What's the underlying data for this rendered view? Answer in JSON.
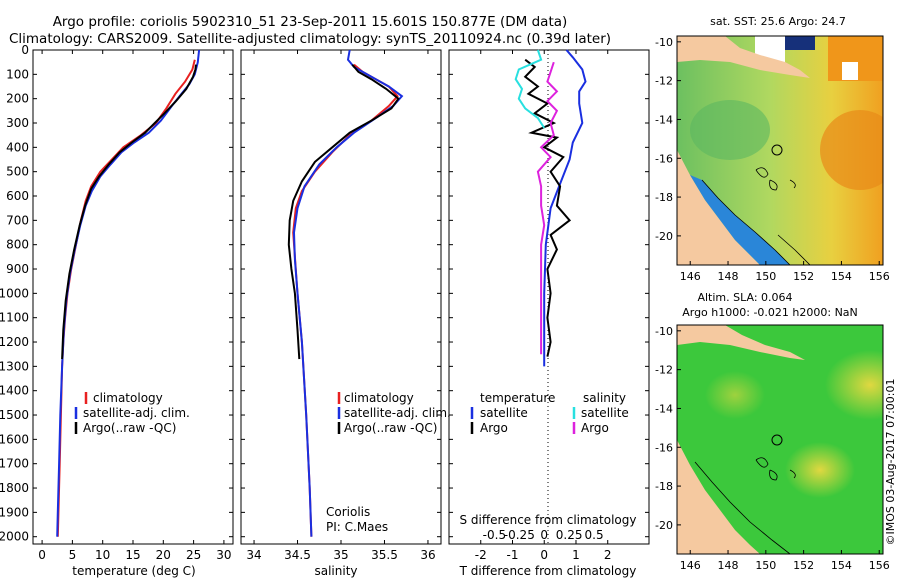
{
  "header": {
    "line1": "Argo profile: coriolis 5902310_51 23-Sep-2011 15.601S 150.877E (DM data)",
    "line2": "Climatology: CARS2009. Satellite-adjusted climatology: synTS_20110924.nc (0.39d later)"
  },
  "side_label": "©IMOS 03-Aug-2017 07:00:01",
  "colors": {
    "climatology": "#e82020",
    "satellite": "#1a2fe0",
    "argo": "#000000",
    "salinity_satellite": "#28e0e0",
    "salinity_argo": "#dd22dd",
    "land": "#f5c9a0"
  },
  "depth_axis": {
    "ticks": [
      0,
      100,
      200,
      300,
      400,
      500,
      600,
      700,
      800,
      900,
      1000,
      1100,
      1200,
      1300,
      1400,
      1500,
      1600,
      1700,
      1800,
      1900,
      2000
    ],
    "range": [
      0,
      2030
    ]
  },
  "chart_data": [
    {
      "type": "line",
      "name": "temperature-profile",
      "xlabel": "temperature (deg C)",
      "xticks": [
        0,
        5,
        10,
        15,
        20,
        25,
        30
      ],
      "xlim": [
        -1.5,
        31.5
      ],
      "ylim": [
        0,
        2030
      ],
      "legend": [
        "climatology",
        "satellite-adj. clim.",
        "Argo(..raw -QC)"
      ],
      "series": [
        {
          "name": "climatology",
          "color": "#e82020",
          "points": [
            [
              25.2,
              40
            ],
            [
              24.8,
              80
            ],
            [
              23.6,
              130
            ],
            [
              22.0,
              180
            ],
            [
              20.5,
              240
            ],
            [
              18.8,
              300
            ],
            [
              16.3,
              350
            ],
            [
              13.4,
              400
            ],
            [
              11.5,
              450
            ],
            [
              9.6,
              500
            ],
            [
              8.1,
              560
            ],
            [
              7.2,
              620
            ],
            [
              6.4,
              700
            ],
            [
              5.6,
              800
            ],
            [
              4.8,
              900
            ],
            [
              4.2,
              1000
            ],
            [
              3.8,
              1100
            ],
            [
              3.5,
              1200
            ],
            [
              3.3,
              1300
            ],
            [
              3.1,
              1500
            ],
            [
              2.9,
              1700
            ],
            [
              2.6,
              2000
            ]
          ]
        },
        {
          "name": "satellite",
          "color": "#1a2fe0",
          "points": [
            [
              25.9,
              0
            ],
            [
              25.7,
              50
            ],
            [
              25.2,
              100
            ],
            [
              24.3,
              140
            ],
            [
              23.0,
              180
            ],
            [
              21.4,
              230
            ],
            [
              19.6,
              290
            ],
            [
              17.6,
              340
            ],
            [
              15.2,
              380
            ],
            [
              13.1,
              420
            ],
            [
              11.3,
              470
            ],
            [
              9.6,
              520
            ],
            [
              8.2,
              580
            ],
            [
              7.2,
              640
            ],
            [
              6.3,
              720
            ],
            [
              5.4,
              820
            ],
            [
              4.6,
              920
            ],
            [
              4.0,
              1030
            ],
            [
              3.6,
              1150
            ],
            [
              3.3,
              1300
            ],
            [
              3.0,
              1500
            ],
            [
              2.8,
              1700
            ],
            [
              2.6,
              1900
            ],
            [
              2.5,
              2000
            ]
          ]
        },
        {
          "name": "argo",
          "color": "#000000",
          "points": [
            [
              25.4,
              60
            ],
            [
              25.3,
              80
            ],
            [
              24.9,
              110
            ],
            [
              23.8,
              160
            ],
            [
              22.1,
              210
            ],
            [
              20.2,
              260
            ],
            [
              18.6,
              300
            ],
            [
              17.0,
              340
            ],
            [
              14.8,
              380
            ],
            [
              12.8,
              420
            ],
            [
              11.0,
              470
            ],
            [
              9.4,
              520
            ],
            [
              8.1,
              570
            ],
            [
              7.1,
              640
            ],
            [
              6.2,
              720
            ],
            [
              5.3,
              820
            ],
            [
              4.5,
              920
            ],
            [
              3.9,
              1030
            ],
            [
              3.5,
              1150
            ],
            [
              3.3,
              1270
            ]
          ]
        }
      ]
    },
    {
      "type": "line",
      "name": "salinity-profile",
      "xlabel": "salinity",
      "xticks": [
        34,
        34.5,
        35,
        35.5,
        36
      ],
      "xlim": [
        33.85,
        36.15
      ],
      "ylim": [
        0,
        2030
      ],
      "legend": [
        "climatology",
        "satellite-adj. clim.",
        "Argo(..raw -QC)"
      ],
      "annotation": [
        "Coriolis",
        "PI: C.Maes"
      ],
      "series": [
        {
          "name": "climatology",
          "color": "#e82020",
          "points": [
            [
              35.15,
              60
            ],
            [
              35.25,
              90
            ],
            [
              35.4,
              120
            ],
            [
              35.55,
              150
            ],
            [
              35.65,
              190
            ],
            [
              35.55,
              230
            ],
            [
              35.35,
              290
            ],
            [
              35.1,
              350
            ],
            [
              34.9,
              420
            ],
            [
              34.7,
              500
            ],
            [
              34.55,
              580
            ],
            [
              34.48,
              650
            ],
            [
              34.45,
              750
            ],
            [
              34.47,
              850
            ],
            [
              34.5,
              1000
            ],
            [
              34.55,
              1200
            ],
            [
              34.6,
              1500
            ],
            [
              34.64,
              1800
            ],
            [
              34.66,
              2000
            ]
          ]
        },
        {
          "name": "satellite",
          "color": "#1a2fe0",
          "points": [
            [
              35.1,
              0
            ],
            [
              35.08,
              40
            ],
            [
              35.15,
              70
            ],
            [
              35.35,
              110
            ],
            [
              35.55,
              150
            ],
            [
              35.7,
              190
            ],
            [
              35.6,
              230
            ],
            [
              35.4,
              280
            ],
            [
              35.15,
              340
            ],
            [
              34.95,
              400
            ],
            [
              34.75,
              470
            ],
            [
              34.58,
              560
            ],
            [
              34.5,
              650
            ],
            [
              34.46,
              750
            ],
            [
              34.47,
              860
            ],
            [
              34.5,
              1000
            ],
            [
              34.55,
              1200
            ],
            [
              34.6,
              1500
            ],
            [
              34.64,
              1800
            ],
            [
              34.66,
              2000
            ]
          ]
        },
        {
          "name": "argo",
          "color": "#000000",
          "points": [
            [
              35.13,
              60
            ],
            [
              35.2,
              90
            ],
            [
              35.35,
              120
            ],
            [
              35.52,
              160
            ],
            [
              35.66,
              200
            ],
            [
              35.58,
              240
            ],
            [
              35.35,
              290
            ],
            [
              35.1,
              340
            ],
            [
              34.9,
              400
            ],
            [
              34.7,
              460
            ],
            [
              34.55,
              540
            ],
            [
              34.45,
              620
            ],
            [
              34.41,
              700
            ],
            [
              34.4,
              800
            ],
            [
              34.43,
              900
            ],
            [
              34.47,
              1000
            ],
            [
              34.5,
              1150
            ],
            [
              34.52,
              1270
            ]
          ]
        }
      ]
    },
    {
      "type": "line",
      "name": "difference-profile",
      "xlabel_top": "S difference from climatology",
      "xlabel": "T difference from climatology",
      "xticks_T": [
        -2,
        -1,
        0,
        1,
        2
      ],
      "xticks_S_labels": [
        "-0.5",
        "-0.25",
        "0",
        "0.25",
        "0.5"
      ],
      "xticks_S_values": [
        -0.5,
        -0.25,
        0,
        0.25,
        0.5
      ],
      "xlim_T": [
        -3,
        3.3
      ],
      "ylim": [
        0,
        2030
      ],
      "legend_headers": [
        "temperature",
        "salinity"
      ],
      "legend_left": [
        "satellite",
        "Argo"
      ],
      "legend_right": [
        "satellite",
        "Argo"
      ],
      "series": [
        {
          "name": "T satellite",
          "color": "#1a2fe0",
          "points": [
            [
              0.7,
              0
            ],
            [
              0.9,
              30
            ],
            [
              1.2,
              80
            ],
            [
              1.3,
              130
            ],
            [
              1.1,
              170
            ],
            [
              1.1,
              220
            ],
            [
              1.2,
              300
            ],
            [
              0.9,
              380
            ],
            [
              0.8,
              450
            ],
            [
              0.5,
              550
            ],
            [
              0.2,
              650
            ],
            [
              0.05,
              800
            ],
            [
              0.0,
              1000
            ],
            [
              0.0,
              1300
            ]
          ]
        },
        {
          "name": "T argo",
          "color": "#000000",
          "points": [
            [
              -0.6,
              40
            ],
            [
              -0.3,
              70
            ],
            [
              -0.6,
              110
            ],
            [
              -0.2,
              150
            ],
            [
              -0.5,
              180
            ],
            [
              0.1,
              220
            ],
            [
              -0.3,
              260
            ],
            [
              0.3,
              300
            ],
            [
              -0.4,
              340
            ],
            [
              0.4,
              360
            ],
            [
              0.0,
              400
            ],
            [
              0.6,
              440
            ],
            [
              0.2,
              500
            ],
            [
              0.5,
              560
            ],
            [
              0.4,
              640
            ],
            [
              0.8,
              700
            ],
            [
              0.2,
              760
            ],
            [
              0.4,
              820
            ],
            [
              0.1,
              900
            ],
            [
              0.2,
              1000
            ],
            [
              0.1,
              1100
            ],
            [
              0.2,
              1200
            ],
            [
              0.1,
              1260
            ]
          ]
        },
        {
          "name": "S satellite",
          "color": "#28e0e0",
          "points": [
            [
              -0.2,
              0
            ],
            [
              -0.1,
              40
            ],
            [
              -0.8,
              80
            ],
            [
              -0.9,
              120
            ],
            [
              -0.7,
              160
            ],
            [
              -0.8,
              200
            ],
            [
              -0.6,
              240
            ],
            [
              -0.2,
              280
            ],
            [
              0.0,
              320
            ]
          ]
        },
        {
          "name": "S argo",
          "color": "#dd22dd",
          "points": [
            [
              0.3,
              50
            ],
            [
              0.2,
              90
            ],
            [
              0.1,
              130
            ],
            [
              0.4,
              170
            ],
            [
              0.1,
              210
            ],
            [
              0.4,
              250
            ],
            [
              0.2,
              300
            ],
            [
              0.3,
              350
            ],
            [
              -0.1,
              400
            ],
            [
              0.2,
              440
            ],
            [
              -0.2,
              500
            ],
            [
              -0.1,
              560
            ],
            [
              -0.1,
              640
            ],
            [
              0.0,
              720
            ],
            [
              -0.1,
              800
            ],
            [
              -0.1,
              900
            ],
            [
              -0.1,
              1000
            ],
            [
              -0.1,
              1100
            ],
            [
              -0.1,
              1250
            ]
          ]
        }
      ]
    },
    {
      "type": "heatmap",
      "name": "sst-map",
      "title": "sat. SST: 25.6  Argo: 24.7",
      "xticks": [
        146,
        148,
        150,
        152,
        154,
        156
      ],
      "yticks": [
        -10,
        -12,
        -14,
        -16,
        -18,
        -20
      ],
      "xlim": [
        145.3,
        156.2
      ],
      "ylim": [
        -21.5,
        -9.7
      ],
      "argo_position": {
        "lon": 150.877,
        "lat": -15.601
      }
    },
    {
      "type": "heatmap",
      "name": "sla-map",
      "title_line1": "Altim. SLA: 0.064",
      "title_line2": "Argo h1000: -0.021 h2000: NaN",
      "xticks": [
        146,
        148,
        150,
        152,
        154,
        156
      ],
      "yticks": [
        -10,
        -12,
        -14,
        -16,
        -18,
        -20
      ],
      "xlim": [
        145.3,
        156.2
      ],
      "ylim": [
        -21.5,
        -9.7
      ],
      "argo_position": {
        "lon": 150.877,
        "lat": -15.601
      }
    }
  ]
}
